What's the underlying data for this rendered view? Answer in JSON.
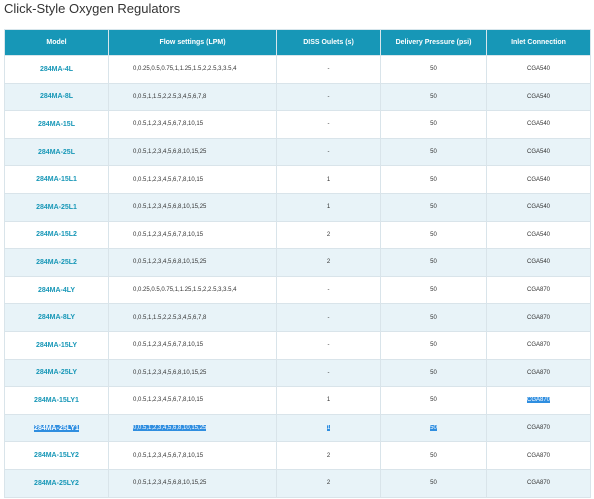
{
  "page": {
    "title": "Click-Style Oxygen Regulators"
  },
  "table": {
    "headers": [
      "Model",
      "Flow settings (LPM)",
      "DISS Oulets (s)",
      "Delivery Pressure (psi)",
      "Inlet Connection"
    ],
    "rows": [
      {
        "model": "284MA-4L",
        "flow": "0,0.25,0.5,0.75,1,1.25,1.5,2,2.5,3,3.5,4",
        "diss": "-",
        "pressure": "50",
        "inlet": "CGA540"
      },
      {
        "model": "284MA-8L",
        "flow": "0,0.5,1,1.5,2,2.5,3,4,5,6,7,8",
        "diss": "-",
        "pressure": "50",
        "inlet": "CGA540"
      },
      {
        "model": "284MA-15L",
        "flow": "0,0.5,1,2,3,4,5,6,7,8,10,15",
        "diss": "-",
        "pressure": "50",
        "inlet": "CGA540"
      },
      {
        "model": "284MA-25L",
        "flow": "0,0.5,1,2,3,4,5,6,8,10,15,25",
        "diss": "-",
        "pressure": "50",
        "inlet": "CGA540"
      },
      {
        "model": "284MA-15L1",
        "flow": "0,0.5,1,2,3,4,5,6,7,8,10,15",
        "diss": "1",
        "pressure": "50",
        "inlet": "CGA540"
      },
      {
        "model": "284MA-25L1",
        "flow": "0,0.5,1,2,3,4,5,6,8,10,15,25",
        "diss": "1",
        "pressure": "50",
        "inlet": "CGA540"
      },
      {
        "model": "284MA-15L2",
        "flow": "0,0.5,1,2,3,4,5,6,7,8,10,15",
        "diss": "2",
        "pressure": "50",
        "inlet": "CGA540"
      },
      {
        "model": "284MA-25L2",
        "flow": "0,0.5,1,2,3,4,5,6,8,10,15,25",
        "diss": "2",
        "pressure": "50",
        "inlet": "CGA540"
      },
      {
        "model": "284MA-4LY",
        "flow": "0,0.25,0.5,0.75,1,1.25,1.5,2,2.5,3,3.5,4",
        "diss": "-",
        "pressure": "50",
        "inlet": "CGA870"
      },
      {
        "model": "284MA-8LY",
        "flow": "0,0.5,1,1.5,2,2.5,3,4,5,6,7,8",
        "diss": "-",
        "pressure": "50",
        "inlet": "CGA870"
      },
      {
        "model": "284MA-15LY",
        "flow": "0,0.5,1,2,3,4,5,6,7,8,10,15",
        "diss": "-",
        "pressure": "50",
        "inlet": "CGA870"
      },
      {
        "model": "284MA-25LY",
        "flow": "0,0.5,1,2,3,4,5,6,8,10,15,25",
        "diss": "-",
        "pressure": "50",
        "inlet": "CGA870"
      },
      {
        "model": "284MA-15LY1",
        "flow": "0,0.5,1,2,3,4,5,6,7,8,10,15",
        "diss": "1",
        "pressure": "50",
        "inlet": "CGA870"
      },
      {
        "model": "284MA-25LY1",
        "flow": "0,0.5,1,2,3,4,5,6,8,10,15,25",
        "diss": "1",
        "pressure": "50",
        "inlet": "CGA870"
      },
      {
        "model": "284MA-15LY2",
        "flow": "0,0.5,1,2,3,4,5,6,7,8,10,15",
        "diss": "2",
        "pressure": "50",
        "inlet": "CGA870"
      },
      {
        "model": "284MA-25LY2",
        "flow": "0,0.5,1,2,3,4,5,6,8,10,15,25",
        "diss": "2",
        "pressure": "50",
        "inlet": "CGA870"
      }
    ]
  },
  "colors": {
    "header_bg": "#1797b7",
    "model_text": "#1797b7",
    "alt_row_bg": "#e8f3f8",
    "selection_bg": "#2f8ee0"
  }
}
